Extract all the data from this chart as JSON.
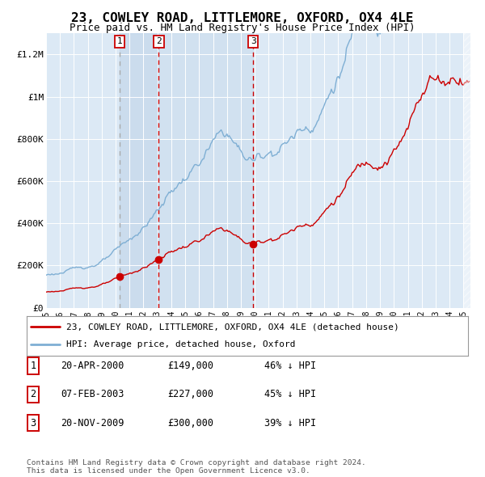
{
  "title": "23, COWLEY ROAD, LITTLEMORE, OXFORD, OX4 4LE",
  "subtitle": "Price paid vs. HM Land Registry's House Price Index (HPI)",
  "title_fontsize": 11.5,
  "subtitle_fontsize": 9,
  "xlim_start": 1995.0,
  "xlim_end": 2025.5,
  "ylim": [
    0,
    1300000
  ],
  "yticks": [
    0,
    200000,
    400000,
    600000,
    800000,
    1000000,
    1200000
  ],
  "ytick_labels": [
    "£0",
    "£200K",
    "£400K",
    "£600K",
    "£800K",
    "£1M",
    "£1.2M"
  ],
  "transactions": [
    {
      "year": 2000.3,
      "price": 149000,
      "label": "1"
    },
    {
      "year": 2003.1,
      "price": 227000,
      "label": "2"
    },
    {
      "year": 2009.89,
      "price": 300000,
      "label": "3"
    }
  ],
  "sale_color": "#cc0000",
  "hpi_color": "#7fafd4",
  "legend_sale": "23, COWLEY ROAD, LITTLEMORE, OXFORD, OX4 4LE (detached house)",
  "legend_hpi": "HPI: Average price, detached house, Oxford",
  "table_entries": [
    {
      "num": "1",
      "date": "20-APR-2000",
      "price": "£149,000",
      "note": "46% ↓ HPI"
    },
    {
      "num": "2",
      "date": "07-FEB-2003",
      "price": "£227,000",
      "note": "45% ↓ HPI"
    },
    {
      "num": "3",
      "date": "20-NOV-2009",
      "price": "£300,000",
      "note": "39% ↓ HPI"
    }
  ],
  "footer": "Contains HM Land Registry data © Crown copyright and database right 2024.\nThis data is licensed under the Open Government Licence v3.0.",
  "plot_bg_color": "#dce9f5",
  "grid_color": "#ffffff",
  "shade_color": "#bdd3e8"
}
